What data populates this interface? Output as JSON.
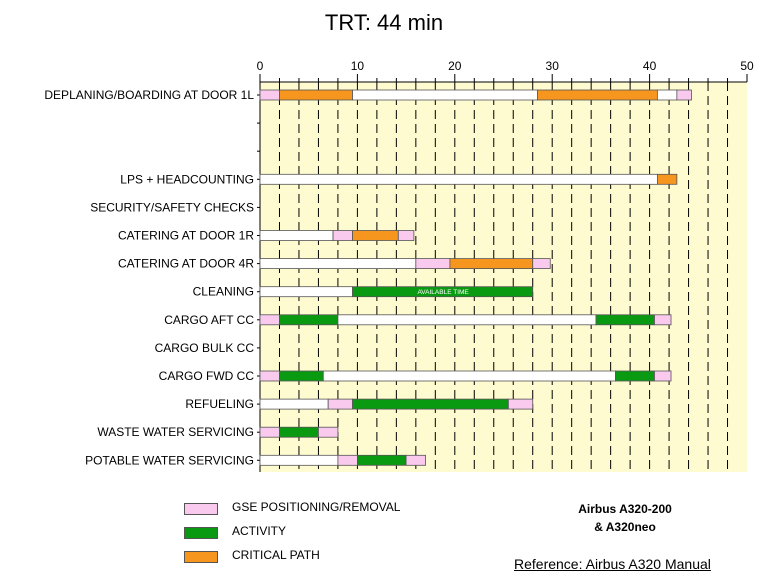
{
  "title": "TRT: 44 min",
  "colors": {
    "gse": "#f9c9ee",
    "activity": "#0a9a12",
    "critical": "#f7961e",
    "available": "#ffffff",
    "plot_bg": "#fffbd1"
  },
  "chart_data": {
    "type": "gantt",
    "title": "TRT: 44 min",
    "xlim": [
      0,
      50
    ],
    "x_ticks": [
      0,
      10,
      20,
      30,
      40,
      50
    ],
    "grid": "dashed vertical lines every 2 minutes",
    "rows": [
      {
        "label": "DEPLANING/BOARDING AT DOOR 1L",
        "segments": [
          {
            "start": 0,
            "end": 2,
            "kind": "gse"
          },
          {
            "start": 2,
            "end": 9.5,
            "kind": "critical"
          },
          {
            "start": 9.5,
            "end": 28.5,
            "kind": "available"
          },
          {
            "start": 28.5,
            "end": 40.8,
            "kind": "critical"
          },
          {
            "start": 40.8,
            "end": 42.8,
            "kind": "available"
          },
          {
            "start": 42.8,
            "end": 44.3,
            "kind": "gse"
          }
        ]
      },
      {
        "label": "LPS + HEADCOUNTING",
        "segments": [
          {
            "start": 0,
            "end": 40.8,
            "kind": "available"
          },
          {
            "start": 40.8,
            "end": 42.8,
            "kind": "critical"
          }
        ]
      },
      {
        "label": "SECURITY/SAFETY CHECKS",
        "segments": []
      },
      {
        "label": "CATERING AT DOOR 1R",
        "segments": [
          {
            "start": 0,
            "end": 7.5,
            "kind": "available"
          },
          {
            "start": 7.5,
            "end": 9.5,
            "kind": "gse"
          },
          {
            "start": 9.5,
            "end": 14.2,
            "kind": "critical"
          },
          {
            "start": 14.2,
            "end": 15.8,
            "kind": "gse"
          }
        ]
      },
      {
        "label": "CATERING AT DOOR 4R",
        "segments": [
          {
            "start": 0,
            "end": 16,
            "kind": "available"
          },
          {
            "start": 16,
            "end": 19.5,
            "kind": "gse"
          },
          {
            "start": 19.5,
            "end": 28,
            "kind": "critical"
          },
          {
            "start": 28,
            "end": 29.8,
            "kind": "gse"
          }
        ]
      },
      {
        "label": "CLEANING",
        "segments": [
          {
            "start": 0,
            "end": 9.5,
            "kind": "available"
          },
          {
            "start": 9.5,
            "end": 28,
            "kind": "activity"
          }
        ]
      },
      {
        "label": "CARGO AFT CC",
        "segments": [
          {
            "start": 0,
            "end": 2,
            "kind": "gse"
          },
          {
            "start": 2,
            "end": 8,
            "kind": "activity"
          },
          {
            "start": 8,
            "end": 34.5,
            "kind": "available"
          },
          {
            "start": 34.5,
            "end": 40.5,
            "kind": "activity"
          },
          {
            "start": 40.5,
            "end": 42.2,
            "kind": "gse"
          }
        ]
      },
      {
        "label": "CARGO BULK CC",
        "segments": []
      },
      {
        "label": "CARGO FWD CC",
        "segments": [
          {
            "start": 0,
            "end": 2,
            "kind": "gse"
          },
          {
            "start": 2,
            "end": 6.5,
            "kind": "activity"
          },
          {
            "start": 6.5,
            "end": 36.5,
            "kind": "available"
          },
          {
            "start": 36.5,
            "end": 40.5,
            "kind": "activity"
          },
          {
            "start": 40.5,
            "end": 42.2,
            "kind": "gse"
          }
        ]
      },
      {
        "label": "REFUELING",
        "segments": [
          {
            "start": 0,
            "end": 7,
            "kind": "available"
          },
          {
            "start": 7,
            "end": 9.5,
            "kind": "gse"
          },
          {
            "start": 9.5,
            "end": 25.5,
            "kind": "activity"
          },
          {
            "start": 25.5,
            "end": 28,
            "kind": "gse"
          }
        ]
      },
      {
        "label": "WASTE WATER SERVICING",
        "segments": [
          {
            "start": 0,
            "end": 2,
            "kind": "gse"
          },
          {
            "start": 2,
            "end": 6,
            "kind": "activity"
          },
          {
            "start": 6,
            "end": 8,
            "kind": "gse"
          }
        ]
      },
      {
        "label": "POTABLE WATER SERVICING",
        "segments": [
          {
            "start": 0,
            "end": 8,
            "kind": "available"
          },
          {
            "start": 8,
            "end": 10,
            "kind": "gse"
          },
          {
            "start": 10,
            "end": 15,
            "kind": "activity"
          },
          {
            "start": 15,
            "end": 17,
            "kind": "gse"
          }
        ]
      }
    ],
    "annotations": [
      {
        "text": "AVAILABLE TIME",
        "row": "CLEANING",
        "x": 18.8
      }
    ]
  },
  "legend": [
    {
      "label": "GSE POSITIONING/REMOVAL",
      "kind": "gse"
    },
    {
      "label": "ACTIVITY",
      "kind": "activity"
    },
    {
      "label": "CRITICAL PATH",
      "kind": "critical"
    }
  ],
  "model": {
    "line1": "Airbus A320-200",
    "line2": "& A320neo"
  },
  "reference": "Reference: Airbus A320 Manual"
}
